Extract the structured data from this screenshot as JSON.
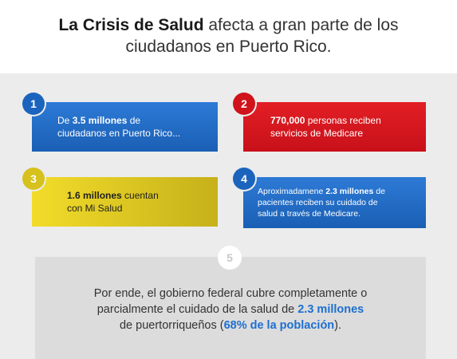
{
  "title": {
    "bold": "La Crisis de Salud",
    "line1_rest": " afecta a gran parte de los",
    "line2": "ciudadanos en Puerto Rico."
  },
  "colors": {
    "blue": "#1a5fb4",
    "red": "#d0121b",
    "yellow": "#d6c11d",
    "highlight": "#1d6fd0",
    "gray_panel": "#dcdcdc"
  },
  "cards": [
    {
      "number": "1",
      "pre": "De ",
      "bold": "3.5 millones",
      "post1": " de",
      "line2": "ciudadanos en Puerto Rico..."
    },
    {
      "number": "2",
      "bold": "770,000",
      "post1": " personas reciben",
      "line2": "servicios de Medicare"
    },
    {
      "number": "3",
      "bold": "1.6 millones",
      "post1": " cuentan",
      "line2": "con Mi Salud"
    },
    {
      "number": "4",
      "pre": "Aproximadamene ",
      "bold": "2.3 millones",
      "post1": " de",
      "line2": "pacientes reciben su cuidado de",
      "line3": "salud a través de Medicare."
    }
  ],
  "bottom": {
    "number": "5",
    "line1": "Por ende, el gobierno federal cubre completamente o",
    "line2_pre": "parcialmente el cuidado de la salud de ",
    "line2_hl": "2.3 millones",
    "line3_pre": "de puertorriqueños (",
    "line3_hl": "68% de la población",
    "line3_post": ")."
  }
}
